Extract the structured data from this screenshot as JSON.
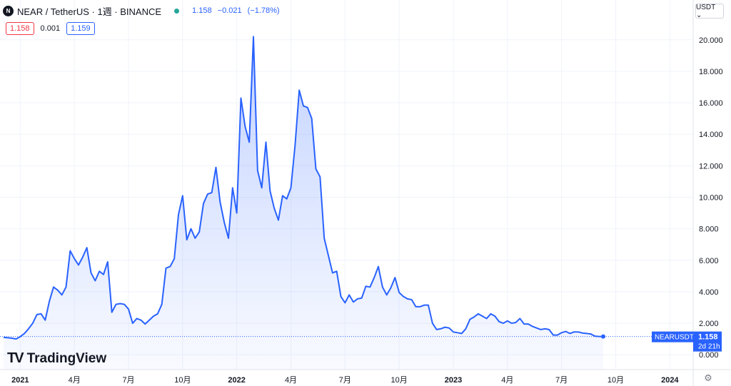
{
  "header": {
    "logo_text": "N",
    "title": "NEAR / TetherUS · 1週 · BINANCE",
    "price": "1.158",
    "change": "−0.021",
    "change_pct": "(−1.78%)"
  },
  "quotes": {
    "bid": "1.158",
    "spread": "0.001",
    "ask": "1.159"
  },
  "currency_button": "USDT ⌄",
  "watermark": "TradingView",
  "chart_data": {
    "type": "area",
    "symbol_label": "NEARUSDT",
    "last_value": "1.158",
    "countdown": "2d 21h",
    "y_ticks": [
      "20.000",
      "18.000",
      "16.000",
      "14.000",
      "12.000",
      "10.000",
      "8.000",
      "6.000",
      "4.000",
      "2.000",
      "0.000"
    ],
    "ylim": [
      -1.6,
      21.1
    ],
    "x_ticks": [
      {
        "label": "2021",
        "i": 4
      },
      {
        "label": "4月",
        "i": 17
      },
      {
        "label": "7月",
        "i": 30
      },
      {
        "label": "10月",
        "i": 43
      },
      {
        "label": "2022",
        "i": 56
      },
      {
        "label": "4月",
        "i": 69
      },
      {
        "label": "7月",
        "i": 82
      },
      {
        "label": "10月",
        "i": 95
      },
      {
        "label": "2023",
        "i": 108
      },
      {
        "label": "4月",
        "i": 121
      },
      {
        "label": "7月",
        "i": 134
      },
      {
        "label": "10月",
        "i": 147
      },
      {
        "label": "2024",
        "i": 160
      }
    ],
    "values": [
      1.1,
      1.08,
      1.05,
      1.0,
      1.15,
      1.35,
      1.65,
      2.0,
      2.55,
      2.6,
      2.2,
      3.4,
      4.3,
      4.1,
      3.8,
      4.3,
      6.6,
      6.1,
      5.7,
      6.2,
      6.8,
      5.2,
      4.7,
      5.3,
      5.1,
      5.9,
      2.7,
      3.2,
      3.25,
      3.2,
      2.9,
      2.0,
      2.3,
      2.2,
      1.95,
      2.2,
      2.45,
      2.6,
      3.2,
      5.5,
      5.6,
      6.1,
      8.9,
      10.1,
      7.3,
      8.0,
      7.4,
      7.8,
      9.6,
      10.2,
      10.3,
      11.9,
      9.7,
      8.4,
      7.4,
      10.6,
      9.0,
      16.3,
      14.5,
      13.5,
      20.2,
      11.7,
      10.6,
      13.5,
      10.4,
      9.3,
      8.55,
      10.1,
      9.9,
      10.6,
      13.3,
      16.8,
      15.8,
      15.7,
      15.0,
      11.8,
      11.3,
      7.4,
      6.3,
      5.2,
      5.3,
      3.7,
      3.3,
      3.8,
      3.35,
      3.55,
      3.6,
      4.35,
      4.3,
      4.9,
      5.6,
      4.3,
      3.8,
      4.25,
      4.9,
      3.95,
      3.7,
      3.55,
      3.5,
      3.05,
      3.05,
      3.15,
      3.15,
      2.0,
      1.6,
      1.65,
      1.75,
      1.7,
      1.45,
      1.4,
      1.35,
      1.65,
      2.25,
      2.4,
      2.6,
      2.45,
      2.3,
      2.6,
      2.45,
      2.1,
      2.0,
      2.15,
      2.0,
      2.05,
      2.3,
      1.95,
      1.95,
      1.8,
      1.7,
      1.6,
      1.65,
      1.6,
      1.25,
      1.25,
      1.4,
      1.48,
      1.35,
      1.45,
      1.45,
      1.38,
      1.35,
      1.32,
      1.18,
      1.16,
      1.158
    ],
    "grid": true,
    "line_color": "#2962ff"
  }
}
